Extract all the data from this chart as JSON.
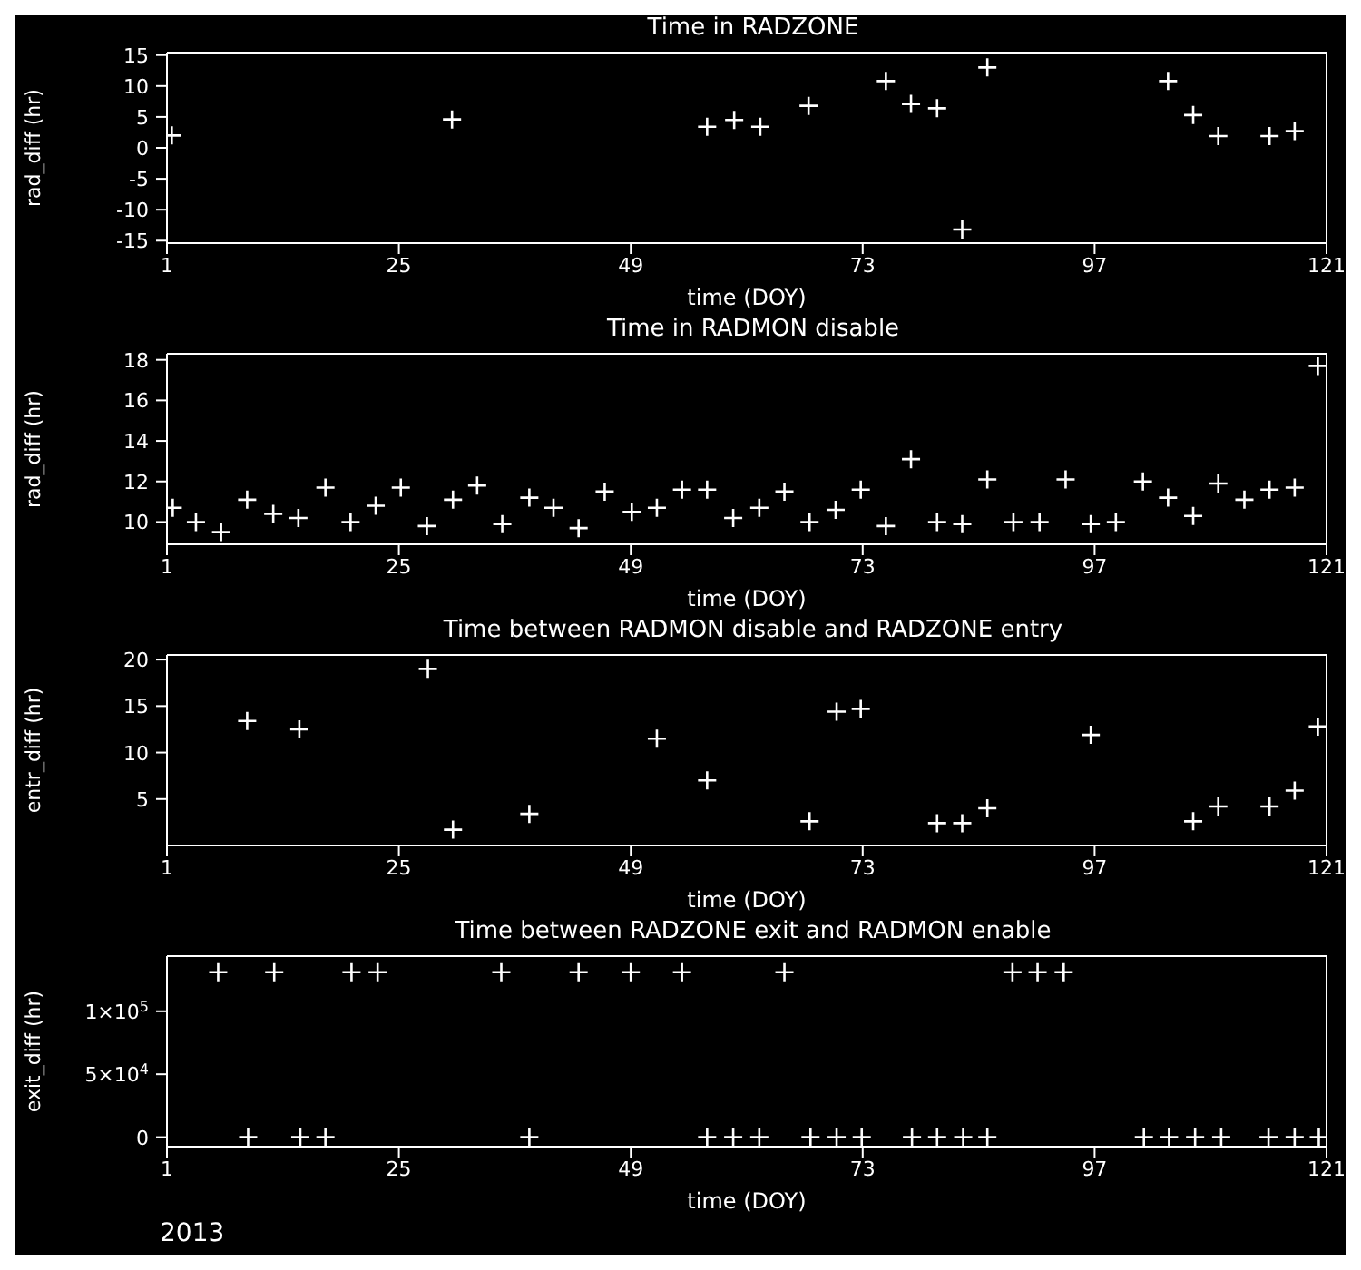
{
  "chart_data": [
    {
      "type": "scatter",
      "title": "Time in RADZONE",
      "xlabel": "time (DOY)",
      "ylabel": "rad_diff (hr)",
      "marker": "cross",
      "xlim": [
        1,
        121
      ],
      "xticks": [
        1,
        25,
        49,
        73,
        97,
        121
      ],
      "ylim": [
        -15.4,
        15.4
      ],
      "yticks": [
        -15,
        -10,
        -5,
        0,
        5,
        10,
        15
      ],
      "series": [
        {
          "color": "#ffffff",
          "x": [
            1.5,
            30.5,
            56.9,
            59.7,
            62.4,
            67.4,
            75.4,
            78,
            80.7,
            83.3,
            85.9,
            104.6,
            107.2,
            109.8,
            115.1,
            117.7
          ],
          "values": [
            2,
            4.6,
            3.4,
            4.5,
            3.4,
            6.8,
            10.8,
            7.1,
            6.4,
            -13.2,
            13,
            10.8,
            5.3,
            1.9,
            1.9,
            2.7
          ]
        }
      ]
    },
    {
      "type": "scatter",
      "title": "Time in RADMON disable",
      "xlabel": "time (DOY)",
      "ylabel": "rad_diff (hr)",
      "marker": "cross",
      "xlim": [
        1,
        121
      ],
      "xticks": [
        1,
        25,
        49,
        73,
        97,
        121
      ],
      "ylim": [
        8.9,
        18.3
      ],
      "yticks": [
        10,
        12,
        14,
        16,
        18
      ],
      "series": [
        {
          "color": "#ffffff",
          "x": [
            1.6,
            4,
            6.6,
            9.3,
            12,
            14.6,
            17.4,
            20,
            22.6,
            25.2,
            27.9,
            30.6,
            33.1,
            35.7,
            38.5,
            41,
            43.6,
            46.3,
            49.1,
            51.7,
            54.3,
            56.9,
            59.6,
            62.3,
            64.9,
            67.5,
            70.2,
            72.8,
            75.4,
            78,
            80.7,
            83.3,
            85.9,
            88.6,
            91.3,
            94,
            96.6,
            99.2,
            102,
            104.6,
            107.2,
            109.8,
            112.5,
            115.1,
            117.7,
            120.1
          ],
          "values": [
            10.7,
            10,
            9.5,
            11.1,
            10.4,
            10.2,
            11.7,
            10,
            10.8,
            11.7,
            9.8,
            11.1,
            11.8,
            9.9,
            11.2,
            10.7,
            9.7,
            11.5,
            10.5,
            10.7,
            11.6,
            11.6,
            10.2,
            10.7,
            11.5,
            10,
            10.6,
            11.6,
            9.8,
            13.1,
            10,
            9.9,
            12.1,
            10,
            10,
            12.1,
            9.9,
            10,
            12,
            11.2,
            10.3,
            11.9,
            11.1,
            11.6,
            11.7,
            17.7
          ]
        }
      ]
    },
    {
      "type": "scatter",
      "title": "Time between RADMON disable and RADZONE entry",
      "xlabel": "time (DOY)",
      "ylabel": "entr_diff (hr)",
      "marker": "cross",
      "xlim": [
        1,
        121
      ],
      "xticks": [
        1,
        25,
        49,
        73,
        97,
        121
      ],
      "ylim": [
        0,
        20.5
      ],
      "yticks": [
        5,
        10,
        15,
        20
      ],
      "series": [
        {
          "color": "#ffffff",
          "x": [
            9.3,
            14.7,
            28,
            30.6,
            38.5,
            51.7,
            56.9,
            67.5,
            70.3,
            72.8,
            80.7,
            83.3,
            85.9,
            96.6,
            107.2,
            109.8,
            115.1,
            117.7,
            120.1
          ],
          "values": [
            13.4,
            12.5,
            19,
            1.7,
            3.4,
            11.5,
            7,
            2.6,
            14.4,
            14.7,
            2.4,
            2.4,
            4,
            11.9,
            2.6,
            4.2,
            4.2,
            5.9,
            12.8
          ]
        }
      ]
    },
    {
      "type": "scatter",
      "title": "Time between RADZONE exit and RADMON enable",
      "xlabel": "time (DOY)",
      "ylabel": "exit_diff (hr)",
      "marker": "cross",
      "xlim": [
        1,
        121
      ],
      "xticks": [
        1,
        25,
        49,
        73,
        97,
        121
      ],
      "ylim": [
        -7500,
        143800
      ],
      "yticks": [
        0,
        {
          "value": 50000,
          "label": "5×10$^{4}$"
        },
        {
          "value": 100000,
          "label": "1×10$^{5}$"
        }
      ],
      "annotations": [
        "2013"
      ],
      "series": [
        {
          "color": "#ffffff",
          "x": [
            6.3,
            12.1,
            20.1,
            22.8,
            35.6,
            43.6,
            49,
            54.3,
            64.9,
            88.5,
            91.1,
            93.8,
            9.4,
            14.8,
            17.4,
            38.5,
            56.9,
            59.6,
            62.3,
            67.6,
            70.3,
            72.9,
            78.1,
            80.7,
            83.4,
            85.9,
            102.1,
            104.7,
            107.4,
            110.1,
            115,
            117.7,
            120.2
          ],
          "values": [
            131000,
            131000,
            131000,
            131000,
            131000,
            131000,
            131000,
            131000,
            131000,
            131000,
            131000,
            131000,
            0,
            0,
            0,
            0,
            0,
            0,
            0,
            0,
            0,
            0,
            0,
            0,
            0,
            0,
            0,
            0,
            0,
            0,
            0,
            0,
            0
          ]
        }
      ]
    }
  ]
}
